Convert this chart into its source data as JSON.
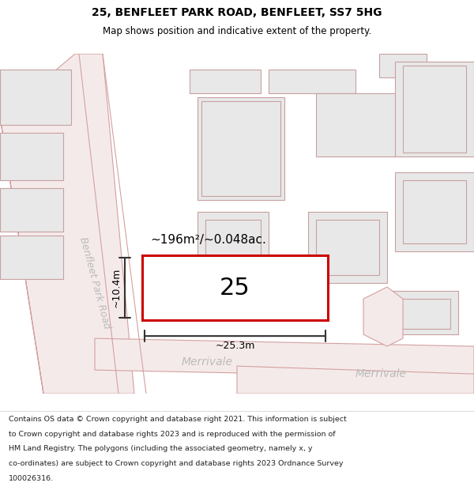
{
  "title_line1": "25, BENFLEET PARK ROAD, BENFLEET, SS7 5HG",
  "title_line2": "Map shows position and indicative extent of the property.",
  "footer_lines": [
    "Contains OS data © Crown copyright and database right 2021. This information is subject",
    "to Crown copyright and database rights 2023 and is reproduced with the permission of",
    "HM Land Registry. The polygons (including the associated geometry, namely x, y",
    "co-ordinates) are subject to Crown copyright and database rights 2023 Ordnance Survey",
    "100026316."
  ],
  "bg_color": "#ffffff",
  "building_fill": "#e8e8e8",
  "building_edge": "#c8a0a0",
  "road_fill": "#f5eaea",
  "road_edge": "#d4a0a0",
  "highlight_color": "#cc0000",
  "dim_color": "#333333",
  "road_label_color": "#bbbbbb",
  "area_label": "~196m²/~0.048ac.",
  "number_label": "25",
  "width_label": "~25.3m",
  "height_label": "~10.4m",
  "road_name_bpr": "Benfleet Park Road",
  "road_name_merr1": "Merrivale",
  "road_name_merr2": "Merrivale",
  "title_fontsize": 10,
  "subtitle_fontsize": 8.5,
  "footer_fontsize": 6.8,
  "area_fontsize": 11,
  "number_fontsize": 22,
  "dim_fontsize": 9,
  "road_label_fontsize": 9
}
